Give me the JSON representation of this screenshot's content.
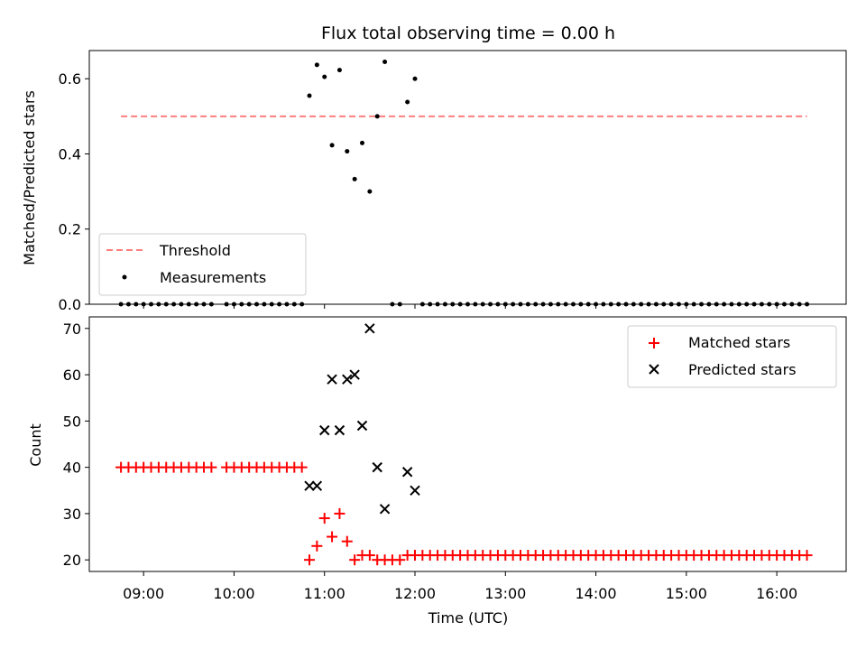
{
  "chart_data": [
    {
      "type": "scatter",
      "title": "Flux total observing time = 0.00 h",
      "xlabel": "",
      "ylabel": "Matched/Predicted stars",
      "xlim": [
        "08:24",
        "16:46"
      ],
      "ylim": [
        0,
        0.675
      ],
      "yticks": [
        0.0,
        0.2,
        0.4,
        0.6
      ],
      "legend": "bottom-left",
      "threshold": {
        "name": "Threshold",
        "value": 0.5,
        "x_range": [
          "08:45",
          "16:20"
        ],
        "color": "#ff7f7f"
      },
      "series": [
        {
          "name": "Measurements",
          "color": "#000000",
          "x": [
            "08:45",
            "08:50",
            "08:55",
            "09:00",
            "09:05",
            "09:10",
            "09:15",
            "09:20",
            "09:25",
            "09:30",
            "09:35",
            "09:40",
            "09:45",
            "09:55",
            "10:00",
            "10:05",
            "10:10",
            "10:15",
            "10:20",
            "10:25",
            "10:30",
            "10:35",
            "10:40",
            "10:45",
            "10:50",
            "10:55",
            "11:00",
            "11:05",
            "11:10",
            "11:15",
            "11:20",
            "11:25",
            "11:30",
            "11:35",
            "11:40",
            "11:45",
            "11:50",
            "11:55",
            "12:00",
            "12:05",
            "12:10",
            "12:15",
            "12:20",
            "12:25",
            "12:30",
            "12:35",
            "12:40",
            "12:45",
            "12:50",
            "12:55",
            "13:00",
            "13:05",
            "13:10",
            "13:15",
            "13:20",
            "13:25",
            "13:30",
            "13:35",
            "13:40",
            "13:45",
            "13:50",
            "13:55",
            "14:00",
            "14:05",
            "14:10",
            "14:15",
            "14:20",
            "14:25",
            "14:30",
            "14:35",
            "14:40",
            "14:45",
            "14:50",
            "14:55",
            "15:00",
            "15:05",
            "15:10",
            "15:15",
            "15:20",
            "15:25",
            "15:30",
            "15:35",
            "15:40",
            "15:45",
            "15:50",
            "15:55",
            "16:00",
            "16:05",
            "16:10",
            "16:15",
            "16:20"
          ],
          "y": [
            0,
            0,
            0,
            0,
            0,
            0,
            0,
            0,
            0,
            0,
            0,
            0,
            0,
            0,
            0,
            0,
            0,
            0,
            0,
            0,
            0,
            0,
            0,
            0,
            0.555,
            0.637,
            0.605,
            0.423,
            0.623,
            0.407,
            0.333,
            0.429,
            0.3,
            0.5,
            0.645,
            0,
            0,
            0.538,
            0.6,
            0,
            0,
            0,
            0,
            0,
            0,
            0,
            0,
            0,
            0,
            0,
            0,
            0,
            0,
            0,
            0,
            0,
            0,
            0,
            0,
            0,
            0,
            0,
            0,
            0,
            0,
            0,
            0,
            0,
            0,
            0,
            0,
            0,
            0,
            0,
            0,
            0,
            0,
            0,
            0,
            0,
            0,
            0,
            0,
            0,
            0,
            0,
            0,
            0,
            0,
            0,
            0
          ]
        }
      ]
    },
    {
      "type": "scatter",
      "title": "",
      "xlabel": "Time (UTC)",
      "ylabel": "Count",
      "xlim": [
        "08:24",
        "16:46"
      ],
      "ylim": [
        17.5,
        72.5
      ],
      "xticks": [
        "09:00",
        "10:00",
        "11:00",
        "12:00",
        "13:00",
        "14:00",
        "15:00",
        "16:00"
      ],
      "yticks": [
        20,
        30,
        40,
        50,
        60,
        70
      ],
      "legend": "top-right",
      "series": [
        {
          "name": "Matched stars",
          "marker": "plus",
          "color": "#ff0000",
          "x": [
            "08:45",
            "08:50",
            "08:55",
            "09:00",
            "09:05",
            "09:10",
            "09:15",
            "09:20",
            "09:25",
            "09:30",
            "09:35",
            "09:40",
            "09:45",
            "09:55",
            "10:00",
            "10:05",
            "10:10",
            "10:15",
            "10:20",
            "10:25",
            "10:30",
            "10:35",
            "10:40",
            "10:45",
            "10:50",
            "10:55",
            "11:00",
            "11:05",
            "11:10",
            "11:15",
            "11:20",
            "11:25",
            "11:30",
            "11:35",
            "11:40",
            "11:45",
            "11:50",
            "11:55",
            "12:00",
            "12:05",
            "12:10",
            "12:15",
            "12:20",
            "12:25",
            "12:30",
            "12:35",
            "12:40",
            "12:45",
            "12:50",
            "12:55",
            "13:00",
            "13:05",
            "13:10",
            "13:15",
            "13:20",
            "13:25",
            "13:30",
            "13:35",
            "13:40",
            "13:45",
            "13:50",
            "13:55",
            "14:00",
            "14:05",
            "14:10",
            "14:15",
            "14:20",
            "14:25",
            "14:30",
            "14:35",
            "14:40",
            "14:45",
            "14:50",
            "14:55",
            "15:00",
            "15:05",
            "15:10",
            "15:15",
            "15:20",
            "15:25",
            "15:30",
            "15:35",
            "15:40",
            "15:45",
            "15:50",
            "15:55",
            "16:00",
            "16:05",
            "16:10",
            "16:15",
            "16:20"
          ],
          "y": [
            40,
            40,
            40,
            40,
            40,
            40,
            40,
            40,
            40,
            40,
            40,
            40,
            40,
            40,
            40,
            40,
            40,
            40,
            40,
            40,
            40,
            40,
            40,
            40,
            20,
            23,
            29,
            25,
            30,
            24,
            20,
            21,
            21,
            20,
            20,
            20,
            20,
            21,
            21,
            21,
            21,
            21,
            21,
            21,
            21,
            21,
            21,
            21,
            21,
            21,
            21,
            21,
            21,
            21,
            21,
            21,
            21,
            21,
            21,
            21,
            21,
            21,
            21,
            21,
            21,
            21,
            21,
            21,
            21,
            21,
            21,
            21,
            21,
            21,
            21,
            21,
            21,
            21,
            21,
            21,
            21,
            21,
            21,
            21,
            21,
            21,
            21,
            21,
            21,
            21,
            21
          ]
        },
        {
          "name": "Predicted stars",
          "marker": "x",
          "color": "#000000",
          "x": [
            "10:50",
            "10:55",
            "11:00",
            "11:05",
            "11:10",
            "11:15",
            "11:20",
            "11:25",
            "11:30",
            "11:35",
            "11:40",
            "11:45",
            "11:55",
            "12:00"
          ],
          "y": [
            36,
            36,
            48,
            59,
            48,
            59,
            60,
            49,
            70,
            40,
            31,
            null,
            39,
            35
          ]
        }
      ]
    }
  ]
}
